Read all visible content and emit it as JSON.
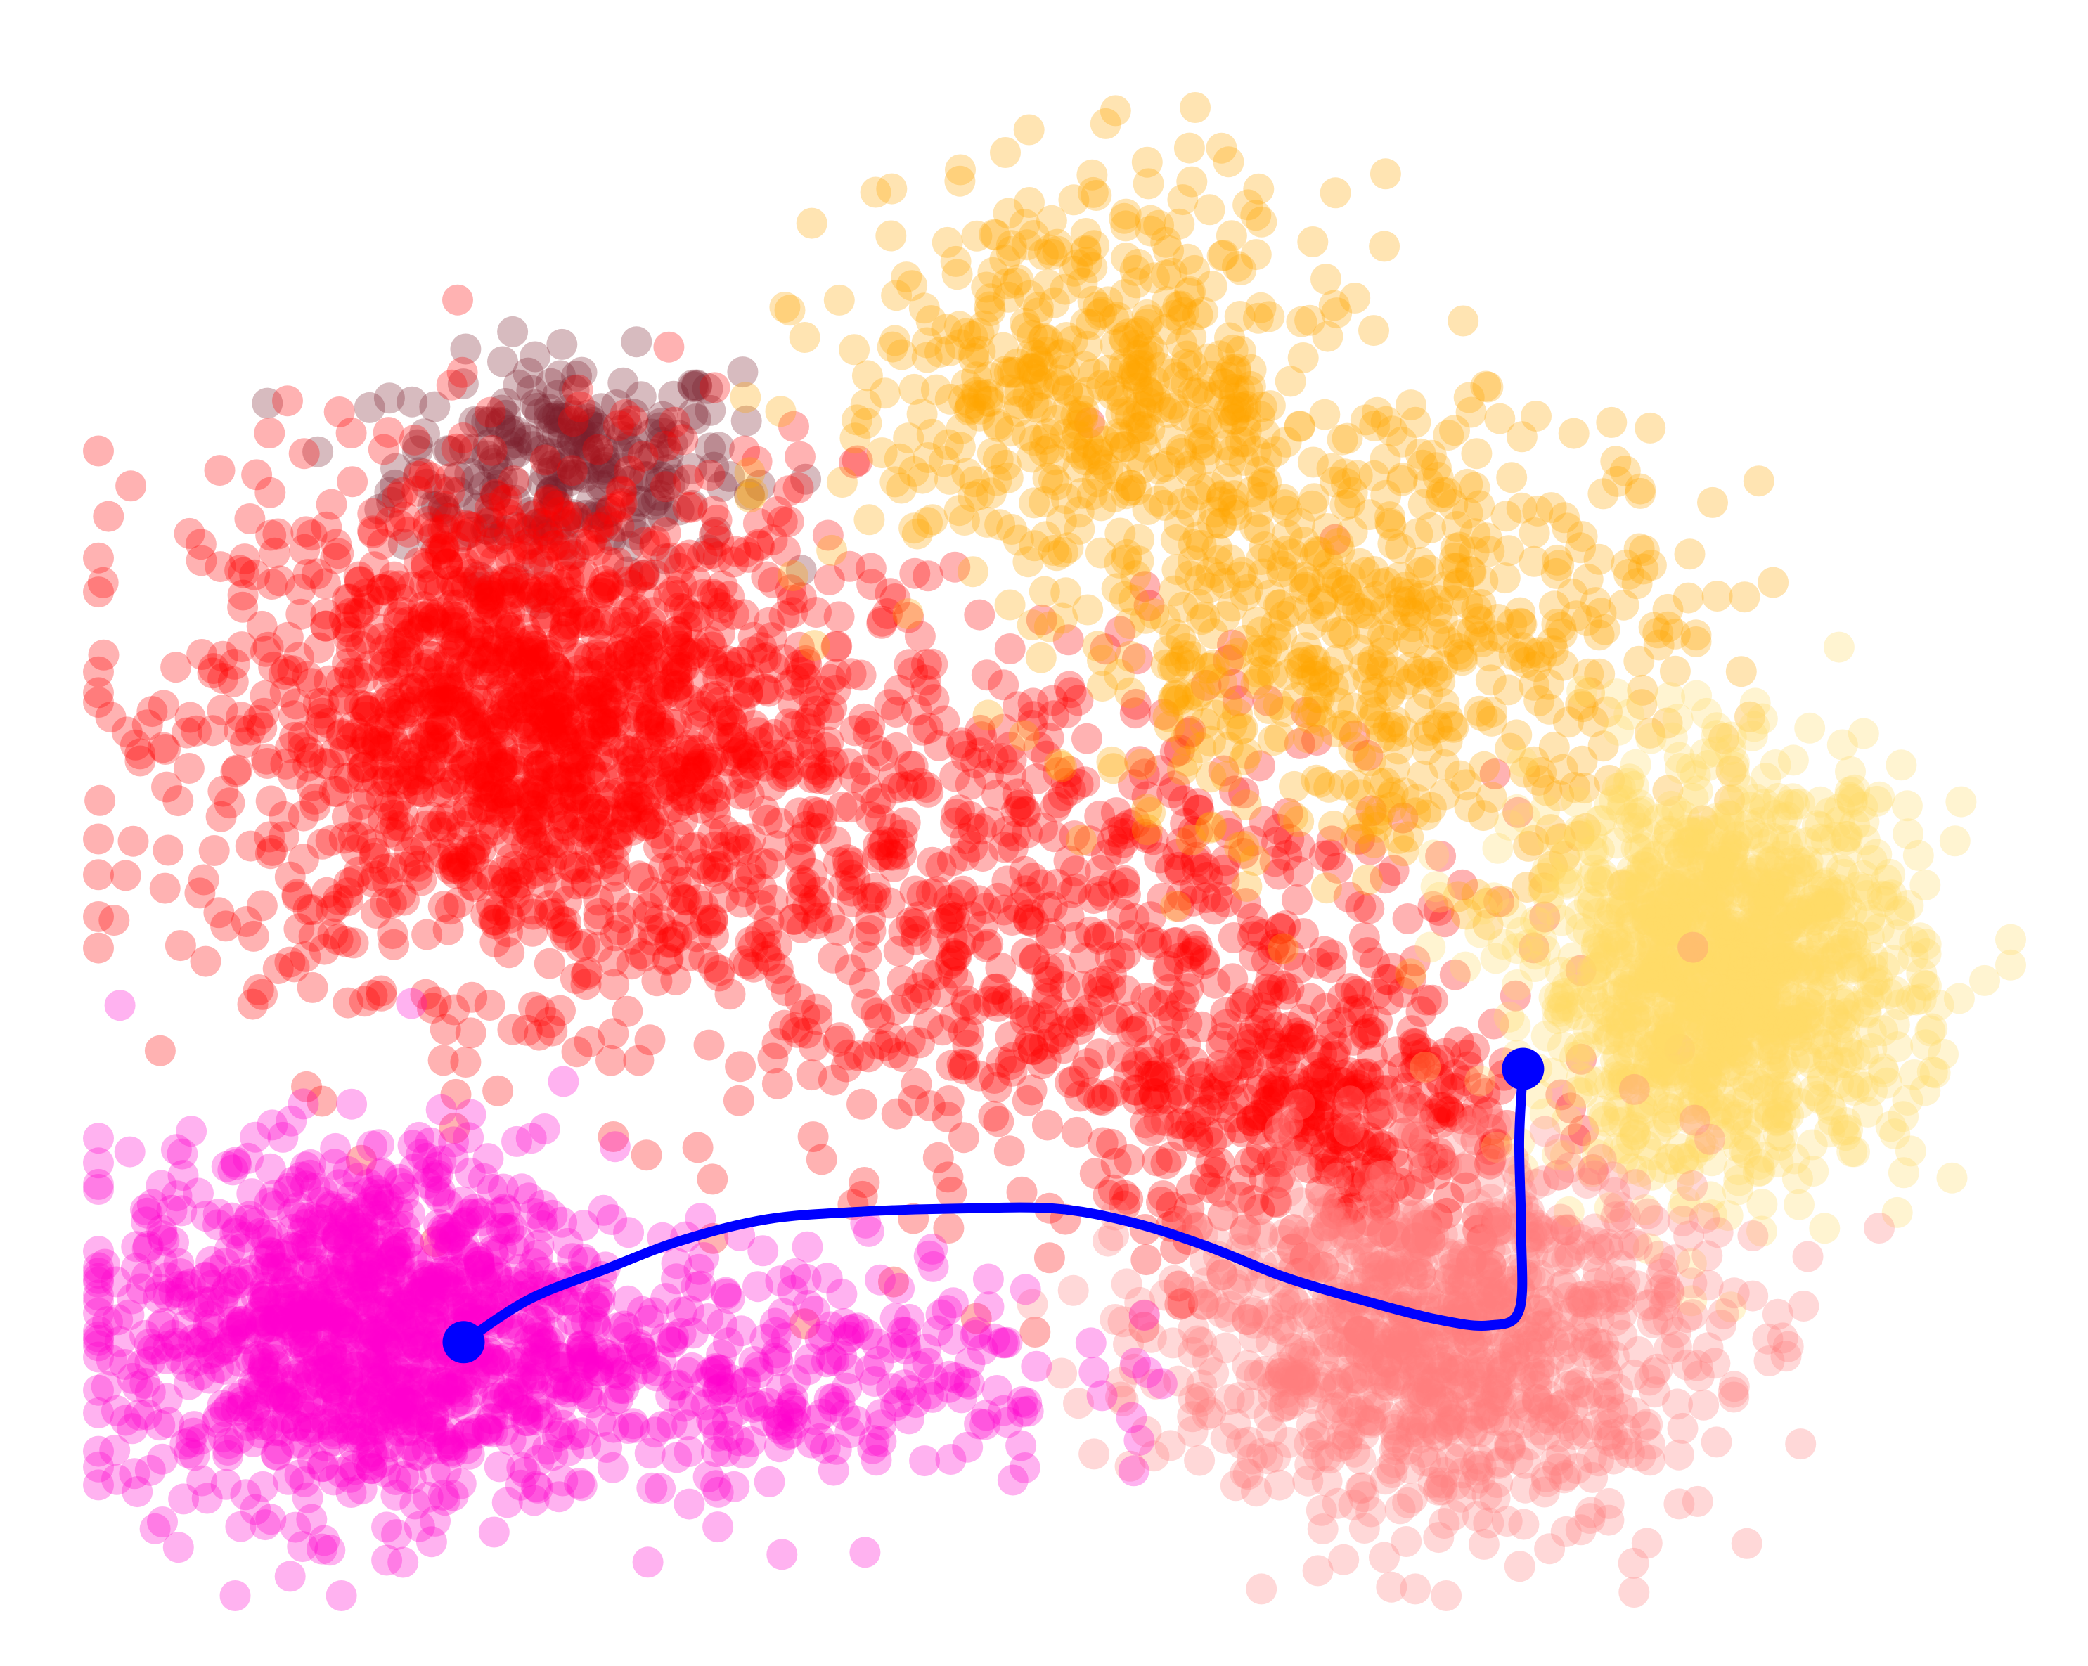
{
  "chart_data": {
    "type": "scatter",
    "title": "",
    "xlabel": "",
    "ylabel": "",
    "axes_visible": false,
    "grid": false,
    "legend": "none",
    "xlim": [
      0,
      100
    ],
    "ylim": [
      0,
      100
    ],
    "point_alpha": 0.3,
    "clusters": [
      {
        "color": "#7a1f2b",
        "n": 260,
        "center": [
          24.5,
          74.5
        ],
        "spread": [
          4.5,
          3.5
        ]
      },
      {
        "color": "#ff0000",
        "n": 1600,
        "center": [
          22.5,
          57.5
        ],
        "spread": [
          8.5,
          8.5
        ]
      },
      {
        "color": "#ff0000",
        "n": 700,
        "center": [
          48.0,
          45.0
        ],
        "spread": [
          10.5,
          9.0
        ]
      },
      {
        "color": "#ff0000",
        "n": 380,
        "center": [
          64.0,
          31.0
        ],
        "spread": [
          5.5,
          5.0
        ]
      },
      {
        "color": "#ffa500",
        "n": 500,
        "center": [
          52.0,
          80.0
        ],
        "spread": [
          6.5,
          6.5
        ]
      },
      {
        "color": "#ffa500",
        "n": 600,
        "center": [
          67.0,
          63.0
        ],
        "spread": [
          8.0,
          7.5
        ]
      },
      {
        "color": "#ffd966",
        "n": 1300,
        "center": [
          85.0,
          41.0
        ],
        "spread": [
          5.0,
          6.5
        ]
      },
      {
        "color": "#ff7f7f",
        "n": 1000,
        "center": [
          70.0,
          17.0
        ],
        "spread": [
          7.0,
          6.0
        ]
      },
      {
        "color": "#ff00cc",
        "n": 1200,
        "center": [
          14.0,
          17.5
        ],
        "spread": [
          6.5,
          6.0
        ]
      },
      {
        "color": "#ff00cc",
        "n": 300,
        "center": [
          35.0,
          15.0
        ],
        "spread": [
          8.0,
          4.0
        ]
      }
    ],
    "trajectory": {
      "color": "#0000ff",
      "points": [
        [
          19.1,
          16.7
        ],
        [
          22.5,
          19.5
        ],
        [
          26.5,
          21.5
        ],
        [
          30.5,
          23.4
        ],
        [
          35.0,
          24.8
        ],
        [
          40.0,
          25.3
        ],
        [
          45.0,
          25.5
        ],
        [
          50.0,
          25.5
        ],
        [
          54.0,
          24.6
        ],
        [
          58.0,
          23.0
        ],
        [
          62.0,
          21.0
        ],
        [
          66.0,
          19.5
        ],
        [
          70.0,
          18.2
        ],
        [
          72.7,
          17.8
        ],
        [
          74.3,
          18.8
        ],
        [
          74.4,
          24.0
        ],
        [
          74.3,
          30.0
        ],
        [
          74.5,
          34.7
        ]
      ],
      "start": [
        19.1,
        16.7
      ],
      "end": [
        74.5,
        34.7
      ]
    }
  }
}
